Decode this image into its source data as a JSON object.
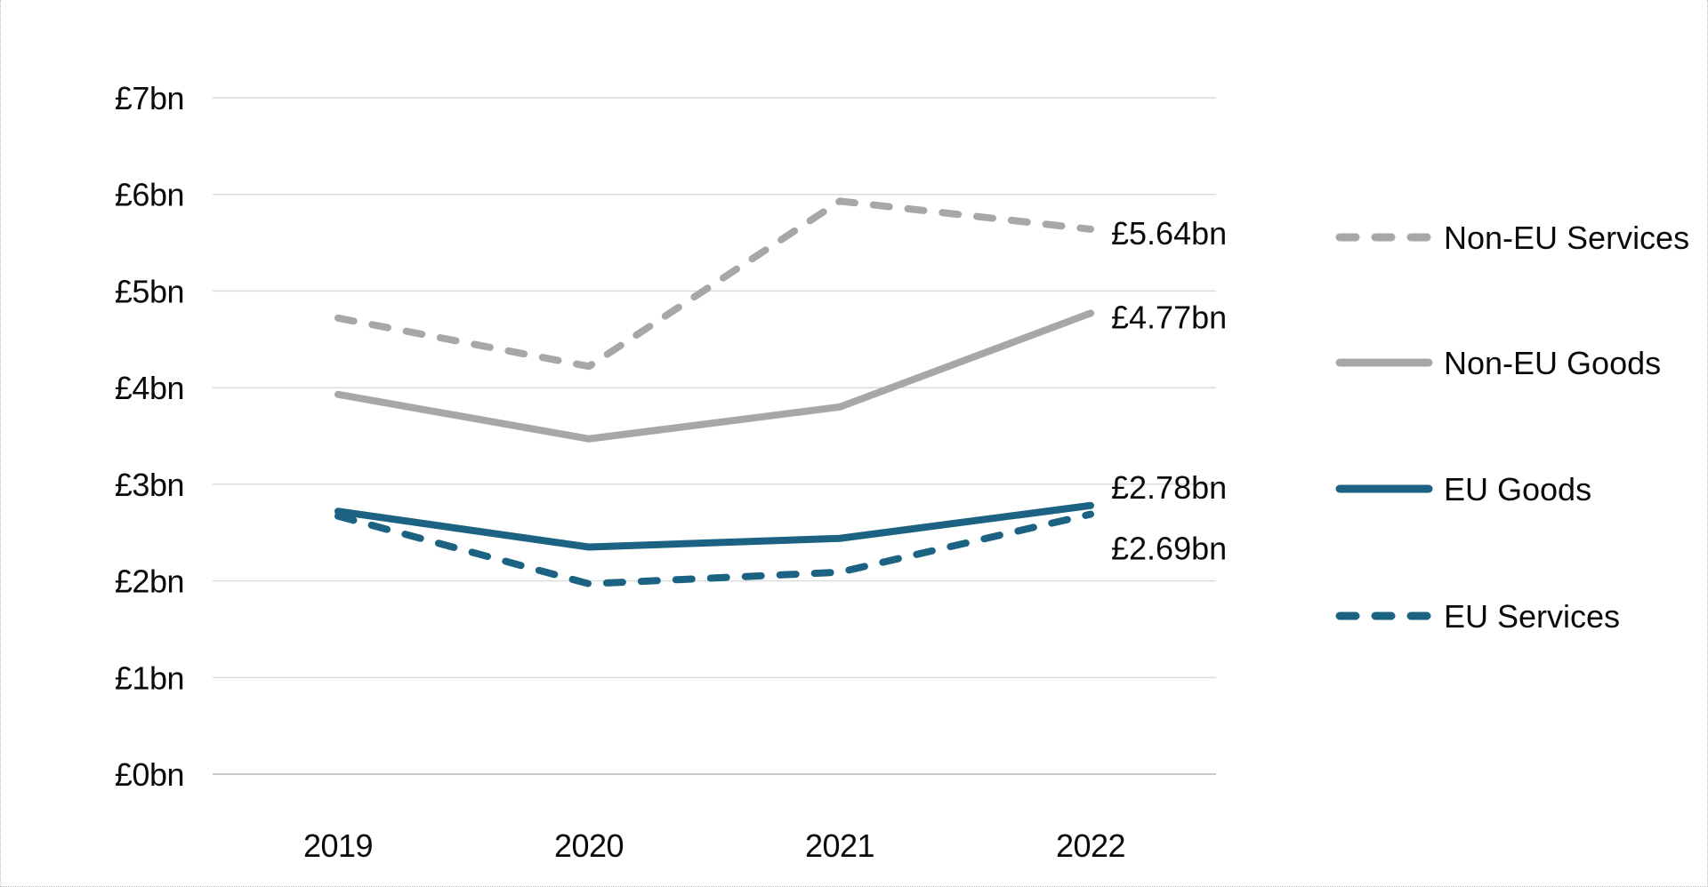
{
  "chart_data": {
    "type": "line",
    "title": "",
    "xlabel": "",
    "ylabel": "",
    "x": [
      "2019",
      "2020",
      "2021",
      "2022"
    ],
    "y_ticks": [
      "£0bn",
      "£1bn",
      "£2bn",
      "£3bn",
      "£4bn",
      "£5bn",
      "£6bn",
      "£7bn"
    ],
    "ylim": [
      0,
      7
    ],
    "grid": true,
    "legend_position": "right",
    "series": [
      {
        "name": "Non-EU Services",
        "values": [
          4.72,
          4.22,
          5.93,
          5.64
        ],
        "color": "#a7a7a7",
        "dashed": true,
        "end_label": "£5.64bn"
      },
      {
        "name": "Non-EU Goods",
        "values": [
          3.93,
          3.47,
          3.8,
          4.77
        ],
        "color": "#a7a7a7",
        "dashed": false,
        "end_label": "£4.77bn"
      },
      {
        "name": "EU Goods",
        "values": [
          2.72,
          2.35,
          2.44,
          2.78
        ],
        "color": "#1c6383",
        "dashed": false,
        "end_label": "£2.78bn"
      },
      {
        "name": "EU Services",
        "values": [
          2.67,
          1.97,
          2.09,
          2.69
        ],
        "color": "#1c6383",
        "dashed": true,
        "end_label": "£2.69bn"
      }
    ]
  },
  "colors": {
    "gridline": "#d9d9d9",
    "baseline": "#c9c9c9",
    "text": "#0a0a0a",
    "teal": "#1c6383",
    "gray": "#a7a7a7"
  }
}
